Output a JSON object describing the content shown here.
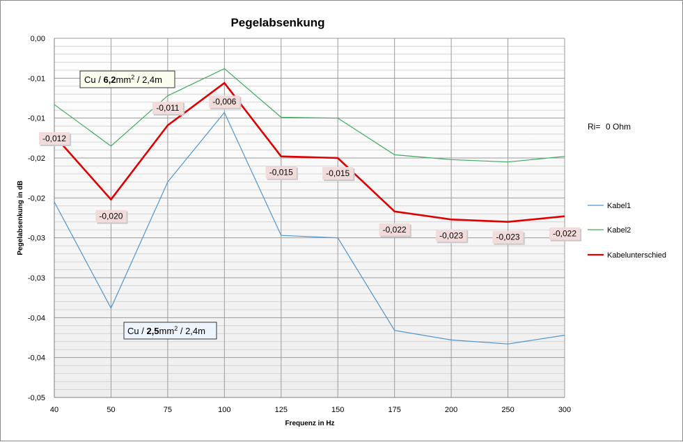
{
  "chart_data": {
    "type": "line",
    "title": "Pegelabsenkung",
    "xlabel": "Frequenz in Hz",
    "ylabel": "Pegelabsenkung in dB",
    "categories": [
      "40",
      "50",
      "75",
      "100",
      "125",
      "150",
      "175",
      "200",
      "250",
      "300"
    ],
    "y_tick_labels": [
      "0,00",
      "-0,01",
      "-0,01",
      "-0,02",
      "-0,02",
      "-0,03",
      "-0,03",
      "-0,04",
      "-0,04",
      "-0,05"
    ],
    "ylim": [
      -0.045,
      0
    ],
    "grid": true,
    "legend_position": "right",
    "series": [
      {
        "name": "Kabel1",
        "color": "#4f94cd",
        "values": [
          -0.0205,
          -0.0338,
          -0.018,
          -0.0093,
          -0.0247,
          -0.025,
          -0.0366,
          -0.0378,
          -0.0383,
          -0.0372
        ]
      },
      {
        "name": "Kabel2",
        "color": "#3daa5e",
        "values": [
          -0.0083,
          -0.0135,
          -0.0072,
          -0.0038,
          -0.0099,
          -0.01,
          -0.0146,
          -0.0152,
          -0.0155,
          -0.0148
        ]
      },
      {
        "name": "Kabelunterschied",
        "color": "#e00000",
        "values": [
          -0.0122,
          -0.0202,
          -0.0109,
          -0.0056,
          -0.0148,
          -0.015,
          -0.0217,
          -0.0227,
          -0.023,
          -0.0223
        ],
        "data_labels": [
          "-0,012",
          "-0,020",
          "-0,011",
          "-0,006",
          "-0,015",
          "-0,015",
          "-0,022",
          "-0,023",
          "-0,023",
          "-0,022"
        ]
      }
    ],
    "annotations": {
      "cable_large": {
        "prefix": "Cu / ",
        "bold": "6,2",
        "unit": "mm",
        "sup": "2",
        "suffix": " / 2,4m"
      },
      "cable_small": {
        "prefix": "Cu / ",
        "bold": "2,5",
        "unit": "mm",
        "sup": "2",
        "suffix": " / 2,4m"
      },
      "ri_label": "Ri=",
      "ri_value": "0  Ohm"
    }
  }
}
